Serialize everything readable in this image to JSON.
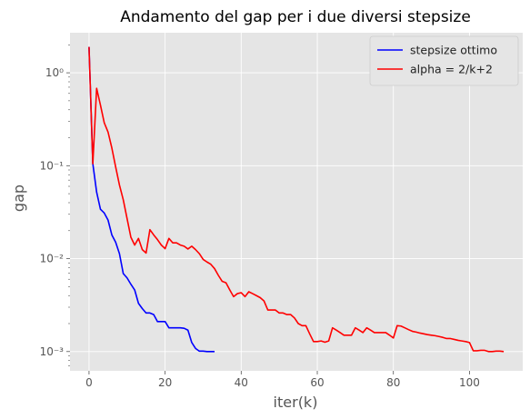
{
  "chart_data": {
    "type": "line",
    "title": "Andamento del gap per i due diversi stepsize",
    "xlabel": "iter(k)",
    "ylabel": "gap",
    "xlim": [
      -5,
      114
    ],
    "ylim": [
      0.00062,
      2.7
    ],
    "y_scale": "log",
    "x_ticks": [
      0,
      20,
      40,
      60,
      80,
      100
    ],
    "y_ticks": [
      0.001,
      0.01,
      0.1,
      1
    ],
    "y_tick_labels": [
      "10⁻³",
      "10⁻²",
      "10⁻¹",
      "10⁰"
    ],
    "grid": true,
    "legend_position": "top-right",
    "colors": {
      "background": "#E5E5E5",
      "grid": "#FFFFFF"
    },
    "series": [
      {
        "name": "stepsize ottimo",
        "color": "#0000FF",
        "x": [
          0,
          1,
          2,
          3,
          4,
          5,
          6,
          7,
          8,
          9,
          10,
          11,
          12,
          13,
          14,
          15,
          16,
          17,
          18,
          19,
          20,
          21,
          22,
          23,
          24,
          25,
          26,
          27,
          28,
          29,
          30,
          31,
          32,
          33
        ],
        "y": [
          1.9,
          0.105,
          0.052,
          0.034,
          0.031,
          0.026,
          0.018,
          0.015,
          0.0113,
          0.0069,
          0.0062,
          0.0053,
          0.0046,
          0.0033,
          0.0029,
          0.0026,
          0.0026,
          0.0025,
          0.0021,
          0.0021,
          0.0021,
          0.0018,
          0.0018,
          0.0018,
          0.0018,
          0.00178,
          0.0017,
          0.00125,
          0.00108,
          0.00101,
          0.00101,
          0.001,
          0.001,
          0.001
        ]
      },
      {
        "name": "alpha = 2/k+2",
        "color": "#FF0000",
        "x": [
          0,
          1,
          2,
          3,
          4,
          5,
          6,
          7,
          8,
          9,
          10,
          11,
          12,
          13,
          14,
          15,
          16,
          17,
          18,
          19,
          20,
          21,
          22,
          23,
          24,
          25,
          26,
          27,
          28,
          29,
          30,
          31,
          32,
          33,
          34,
          35,
          36,
          37,
          38,
          39,
          40,
          41,
          42,
          43,
          44,
          45,
          46,
          47,
          48,
          49,
          50,
          51,
          52,
          53,
          54,
          55,
          56,
          57,
          58,
          59,
          60,
          61,
          62,
          63,
          64,
          65,
          66,
          67,
          68,
          69,
          70,
          71,
          72,
          73,
          74,
          75,
          76,
          77,
          78,
          79,
          80,
          81,
          82,
          83,
          84,
          85,
          86,
          87,
          88,
          89,
          90,
          91,
          92,
          93,
          94,
          95,
          96,
          97,
          98,
          99,
          100,
          101,
          102,
          103,
          104,
          105,
          106,
          107,
          108,
          109
        ],
        "y": [
          1.9,
          0.105,
          0.68,
          0.45,
          0.29,
          0.23,
          0.155,
          0.097,
          0.062,
          0.043,
          0.027,
          0.017,
          0.014,
          0.0165,
          0.0125,
          0.0115,
          0.0205,
          0.018,
          0.016,
          0.014,
          0.0128,
          0.0165,
          0.0148,
          0.0148,
          0.014,
          0.0136,
          0.0127,
          0.0136,
          0.0125,
          0.0113,
          0.0098,
          0.0092,
          0.0087,
          0.0078,
          0.0066,
          0.0057,
          0.0055,
          0.0046,
          0.0039,
          0.0042,
          0.0043,
          0.0039,
          0.0044,
          0.0042,
          0.004,
          0.0038,
          0.0035,
          0.0028,
          0.0028,
          0.0028,
          0.0026,
          0.0026,
          0.0025,
          0.0025,
          0.0023,
          0.002,
          0.0019,
          0.0019,
          0.00155,
          0.00128,
          0.00128,
          0.0013,
          0.00126,
          0.0013,
          0.0018,
          0.0017,
          0.0016,
          0.0015,
          0.0015,
          0.0015,
          0.0018,
          0.0017,
          0.0016,
          0.0018,
          0.0017,
          0.0016,
          0.0016,
          0.0016,
          0.0016,
          0.0015,
          0.0014,
          0.0019,
          0.00188,
          0.0018,
          0.00172,
          0.00165,
          0.00162,
          0.00158,
          0.00155,
          0.00152,
          0.0015,
          0.00148,
          0.00145,
          0.00142,
          0.00138,
          0.00138,
          0.00135,
          0.00132,
          0.0013,
          0.00128,
          0.00125,
          0.00102,
          0.00102,
          0.00103,
          0.00103,
          0.001,
          0.001,
          0.00101,
          0.00101,
          0.001
        ]
      }
    ]
  }
}
